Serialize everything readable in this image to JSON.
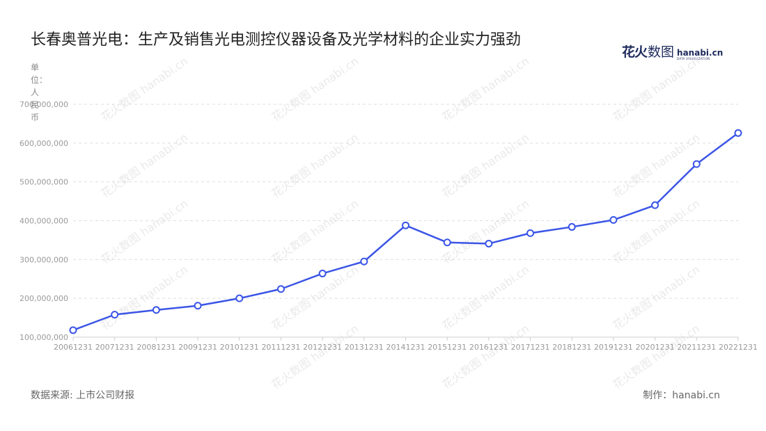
{
  "header": {
    "title": "长春奥普光电：生产及销售光电测控仪器设备及光学材料的企业实力强劲",
    "logo_cn": "花火",
    "logo_cn2": "数图",
    "logo_en": "hanabi.cn",
    "logo_en_sub": "DATA VISUALIZATION"
  },
  "unit_label": "单位：人民币",
  "watermark": "花火数图 hanabi.cn",
  "footer": {
    "source": "数据来源: 上市公司财报",
    "credit": "制作：hanabi.cn"
  },
  "colors": {
    "line": "#3b55e6",
    "grid": "#dddddd",
    "axis": "#cccccc",
    "marker_fill": "#ffffff"
  },
  "chart_data": {
    "type": "line",
    "title": "长春奥普光电：生产及销售光电测控仪器设备及光学材料的企业实力强劲",
    "categories": [
      "20061231",
      "20071231",
      "20081231",
      "20091231",
      "20101231",
      "20111231",
      "20121231",
      "20131231",
      "20141231",
      "20151231",
      "20161231",
      "20171231",
      "20181231",
      "20191231",
      "20201231",
      "20211231",
      "20221231"
    ],
    "series": [
      {
        "values": [
          118000000,
          158000000,
          170000000,
          181000000,
          200000000,
          224000000,
          264000000,
          295000000,
          388000000,
          344000000,
          341000000,
          368000000,
          384000000,
          402000000,
          440000000,
          546000000,
          626000000
        ]
      }
    ],
    "ylim": [
      100000000,
      700000000
    ],
    "yticks": [
      100000000,
      200000000,
      300000000,
      400000000,
      500000000,
      600000000,
      700000000
    ],
    "ytick_labels": [
      "100,000,000",
      "200,000,000",
      "300,000,000",
      "400,000,000",
      "500,000,000",
      "600,000,000",
      "700,000,000"
    ],
    "ylabel": "单位：人民币",
    "xlabel": "",
    "grid": true,
    "legend": "none"
  }
}
